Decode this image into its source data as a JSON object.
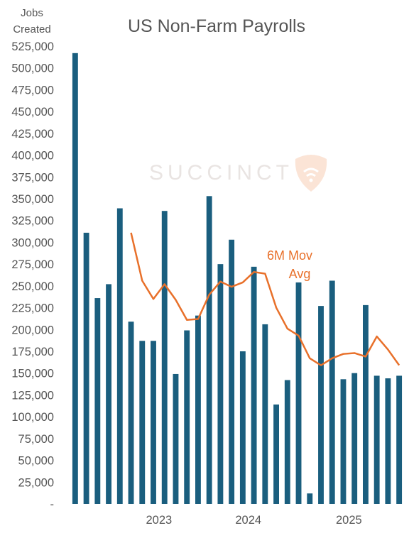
{
  "chart_data": {
    "type": "bar",
    "title": "US Non-Farm Payrolls",
    "ylabel_lines": [
      "Jobs",
      "Created"
    ],
    "watermark": "SUCCINCT",
    "ylim": [
      0,
      525000
    ],
    "y_tick_labels": [
      "-",
      "25,000",
      "50,000",
      "75,000",
      "100,000",
      "125,000",
      "150,000",
      "175,000",
      "200,000",
      "225,000",
      "250,000",
      "275,000",
      "300,000",
      "325,000",
      "350,000",
      "375,000",
      "400,000",
      "425,000",
      "450,000",
      "475,000",
      "500,000",
      "525,000"
    ],
    "x_tick_labels": [
      {
        "label": "2023",
        "index": 7.5
      },
      {
        "label": "2024",
        "index": 15.5
      },
      {
        "label": "2025",
        "index": 24.5
      }
    ],
    "series": [
      {
        "type": "bar",
        "color": "#1a5e7e",
        "values": [
          517000,
          311000,
          236000,
          252000,
          339000,
          209000,
          187000,
          187000,
          336000,
          149000,
          199000,
          216000,
          353000,
          275000,
          303000,
          175000,
          272000,
          206000,
          114000,
          142000,
          254000,
          12000,
          227000,
          256000,
          143000,
          150000,
          228000,
          147000,
          144000,
          147000
        ]
      },
      {
        "name": "6M Mov Avg",
        "type": "line",
        "color": "#e8702a",
        "values": [
          null,
          null,
          null,
          null,
          null,
          311000,
          256000,
          235000,
          252000,
          234000,
          211000,
          212000,
          240000,
          255000,
          249000,
          254000,
          266000,
          264000,
          225000,
          201000,
          193000,
          167000,
          159000,
          167000,
          172000,
          173000,
          169000,
          192000,
          177000,
          159000
        ]
      }
    ],
    "annotations": [
      {
        "text": "6M Mov",
        "color": "#e8702a"
      },
      {
        "text": "Avg",
        "color": "#e8702a"
      }
    ]
  }
}
